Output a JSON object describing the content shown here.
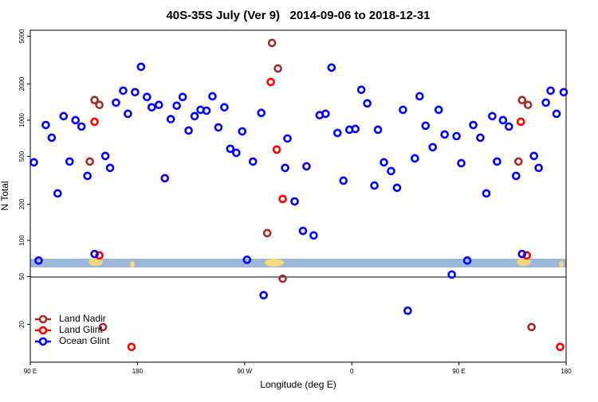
{
  "chart_data": {
    "type": "scatter",
    "title": "40S-35S July (Ver 9)   2014-09-06 to 2018-12-31",
    "xlabel": "Longitude (deg E)",
    "ylabel": "N Total",
    "xlim": [
      90,
      540
    ],
    "xticks": [
      {
        "value": 90,
        "label": "90 E"
      },
      {
        "value": 180,
        "label": "180"
      },
      {
        "value": 270,
        "label": "90 W"
      },
      {
        "value": 360,
        "label": "0"
      },
      {
        "value": 450,
        "label": "90 E"
      },
      {
        "value": 540,
        "label": "180"
      }
    ],
    "ylim": [
      9.7,
      5600
    ],
    "ylog": true,
    "yticks": [
      20,
      50,
      100,
      200,
      500,
      1000,
      2000,
      5000
    ],
    "legend": "lower left",
    "series": [
      {
        "name": "Land Nadir",
        "color": "#a52a2a",
        "x": [
          140,
          144,
          148,
          151,
          289,
          293,
          298,
          302,
          500,
          503,
          508,
          511
        ],
        "values": [
          453,
          1470,
          1340,
          19,
          115,
          4390,
          2690,
          48,
          453,
          1470,
          1340,
          19
        ]
      },
      {
        "name": "Land Glint",
        "color": "#ff0000",
        "x": [
          144,
          148,
          175,
          292,
          297,
          302,
          502,
          507,
          535
        ],
        "values": [
          970,
          75,
          13,
          2080,
          569,
          221,
          970,
          75,
          13
        ]
      },
      {
        "name": "Ocean Glint",
        "color": "#0000ff",
        "x": [
          93,
          97,
          103,
          108,
          113,
          118,
          123,
          128,
          133,
          138,
          144,
          153,
          157,
          162,
          168,
          172,
          178,
          183,
          188,
          192,
          198,
          203,
          208,
          213,
          218,
          223,
          228,
          233,
          238,
          243,
          248,
          253,
          258,
          263,
          268,
          272,
          277,
          284,
          286,
          304,
          306,
          312,
          319,
          322,
          328,
          333,
          338,
          343,
          348,
          353,
          358,
          363,
          368,
          373,
          379,
          382,
          387,
          393,
          398,
          403,
          407,
          413,
          417,
          422,
          428,
          433,
          438,
          444,
          448,
          452,
          457,
          462,
          468,
          473,
          478,
          482,
          487,
          492,
          498,
          503,
          513,
          517,
          523,
          527,
          532,
          538
        ],
        "values": [
          446,
          68,
          912,
          715,
          246,
          1080,
          453,
          1000,
          885,
          344,
          77,
          504,
          401,
          1400,
          1760,
          1130,
          1710,
          2780,
          1560,
          1280,
          1340,
          329,
          1020,
          1320,
          1560,
          820,
          1080,
          1220,
          1200,
          1580,
          871,
          1280,
          578,
          535,
          807,
          69,
          453,
          1150,
          35,
          401,
          704,
          211,
          120,
          413,
          110,
          1100,
          1130,
          2740,
          783,
          314,
          833,
          846,
          1790,
          1380,
          286,
          833,
          446,
          377,
          274,
          1220,
          26,
          481,
          1580,
          899,
          596,
          1220,
          760,
          52,
          737,
          439,
          68,
          912,
          715,
          246,
          1080,
          453,
          1000,
          885,
          344,
          77,
          504,
          401,
          1400,
          1760,
          1130,
          1710
        ]
      }
    ]
  }
}
